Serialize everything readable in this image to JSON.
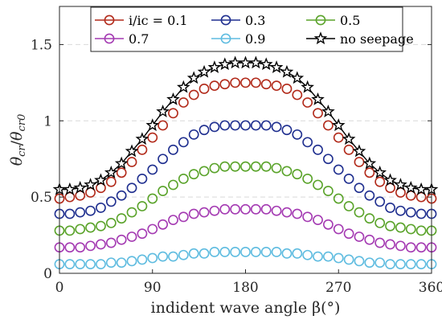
{
  "chart_data": {
    "type": "scatter",
    "title": "",
    "xlabel": "indident wave angle β(°)",
    "ylabel": "θcr/θcr0",
    "ylabel_parts": {
      "base1": "θ",
      "sub1": "cr",
      "slash": "/",
      "base2": "θ",
      "sub2": "cr0"
    },
    "xlim": [
      0,
      360
    ],
    "ylim": [
      0,
      1.75
    ],
    "xticks": [
      0,
      90,
      180,
      270,
      360
    ],
    "xtick_labels": [
      "0",
      "90",
      "180",
      "270",
      "360"
    ],
    "yticks": [
      0,
      0.5,
      1,
      1.5
    ],
    "ytick_labels": [
      "0",
      "0.5",
      "1",
      "1.5"
    ],
    "grid": "y-dashed",
    "legend_position": "top",
    "legend_labels": [
      "i/ic = 0.1",
      "0.3",
      "0.5",
      "0.7",
      "0.9",
      "no seepage"
    ],
    "x": [
      0,
      10,
      20,
      30,
      40,
      50,
      60,
      70,
      80,
      90,
      100,
      110,
      120,
      130,
      140,
      150,
      160,
      170,
      180,
      190,
      200,
      210,
      220,
      230,
      240,
      250,
      260,
      270,
      280,
      290,
      300,
      310,
      320,
      330,
      340,
      350,
      360
    ],
    "series": [
      {
        "name": "i/ic = 0.1",
        "color": "#b22a1a",
        "marker": "circle",
        "values": [
          0.49,
          0.5,
          0.51,
          0.53,
          0.56,
          0.6,
          0.66,
          0.73,
          0.81,
          0.89,
          0.97,
          1.05,
          1.12,
          1.17,
          1.21,
          1.23,
          1.24,
          1.25,
          1.25,
          1.25,
          1.24,
          1.23,
          1.21,
          1.17,
          1.12,
          1.05,
          0.97,
          0.89,
          0.81,
          0.73,
          0.66,
          0.6,
          0.56,
          0.53,
          0.51,
          0.5,
          0.49
        ]
      },
      {
        "name": "0.3",
        "color": "#1f2f8f",
        "marker": "circle",
        "values": [
          0.39,
          0.39,
          0.4,
          0.41,
          0.43,
          0.47,
          0.51,
          0.56,
          0.62,
          0.68,
          0.75,
          0.81,
          0.86,
          0.91,
          0.94,
          0.96,
          0.97,
          0.97,
          0.97,
          0.97,
          0.97,
          0.96,
          0.94,
          0.91,
          0.86,
          0.81,
          0.75,
          0.68,
          0.62,
          0.56,
          0.51,
          0.47,
          0.43,
          0.41,
          0.4,
          0.39,
          0.39
        ]
      },
      {
        "name": "0.5",
        "color": "#5aa32a",
        "marker": "circle",
        "values": [
          0.28,
          0.28,
          0.29,
          0.3,
          0.31,
          0.33,
          0.36,
          0.4,
          0.44,
          0.49,
          0.54,
          0.58,
          0.62,
          0.65,
          0.67,
          0.69,
          0.7,
          0.7,
          0.7,
          0.7,
          0.7,
          0.69,
          0.67,
          0.65,
          0.62,
          0.58,
          0.54,
          0.49,
          0.44,
          0.4,
          0.36,
          0.33,
          0.31,
          0.3,
          0.29,
          0.28,
          0.28
        ]
      },
      {
        "name": "0.7",
        "color": "#a43ab2",
        "marker": "circle",
        "values": [
          0.17,
          0.17,
          0.17,
          0.18,
          0.19,
          0.2,
          0.22,
          0.24,
          0.26,
          0.29,
          0.32,
          0.35,
          0.37,
          0.39,
          0.4,
          0.41,
          0.42,
          0.42,
          0.42,
          0.42,
          0.42,
          0.41,
          0.4,
          0.39,
          0.37,
          0.35,
          0.32,
          0.29,
          0.26,
          0.24,
          0.22,
          0.2,
          0.19,
          0.18,
          0.17,
          0.17,
          0.17
        ]
      },
      {
        "name": "0.9",
        "color": "#5fbce0",
        "marker": "circle",
        "values": [
          0.06,
          0.06,
          0.06,
          0.06,
          0.06,
          0.07,
          0.07,
          0.08,
          0.09,
          0.1,
          0.11,
          0.11,
          0.12,
          0.13,
          0.13,
          0.14,
          0.14,
          0.14,
          0.14,
          0.14,
          0.14,
          0.14,
          0.13,
          0.13,
          0.12,
          0.11,
          0.11,
          0.1,
          0.09,
          0.08,
          0.07,
          0.07,
          0.06,
          0.06,
          0.06,
          0.06,
          0.06
        ]
      },
      {
        "name": "no seepage",
        "color": "#000000",
        "marker": "star",
        "values": [
          0.55,
          0.55,
          0.56,
          0.58,
          0.61,
          0.66,
          0.72,
          0.8,
          0.88,
          0.97,
          1.06,
          1.14,
          1.22,
          1.28,
          1.32,
          1.35,
          1.37,
          1.38,
          1.38,
          1.38,
          1.37,
          1.35,
          1.32,
          1.28,
          1.22,
          1.14,
          1.06,
          0.97,
          0.88,
          0.8,
          0.72,
          0.66,
          0.61,
          0.58,
          0.56,
          0.55,
          0.55
        ]
      }
    ]
  }
}
